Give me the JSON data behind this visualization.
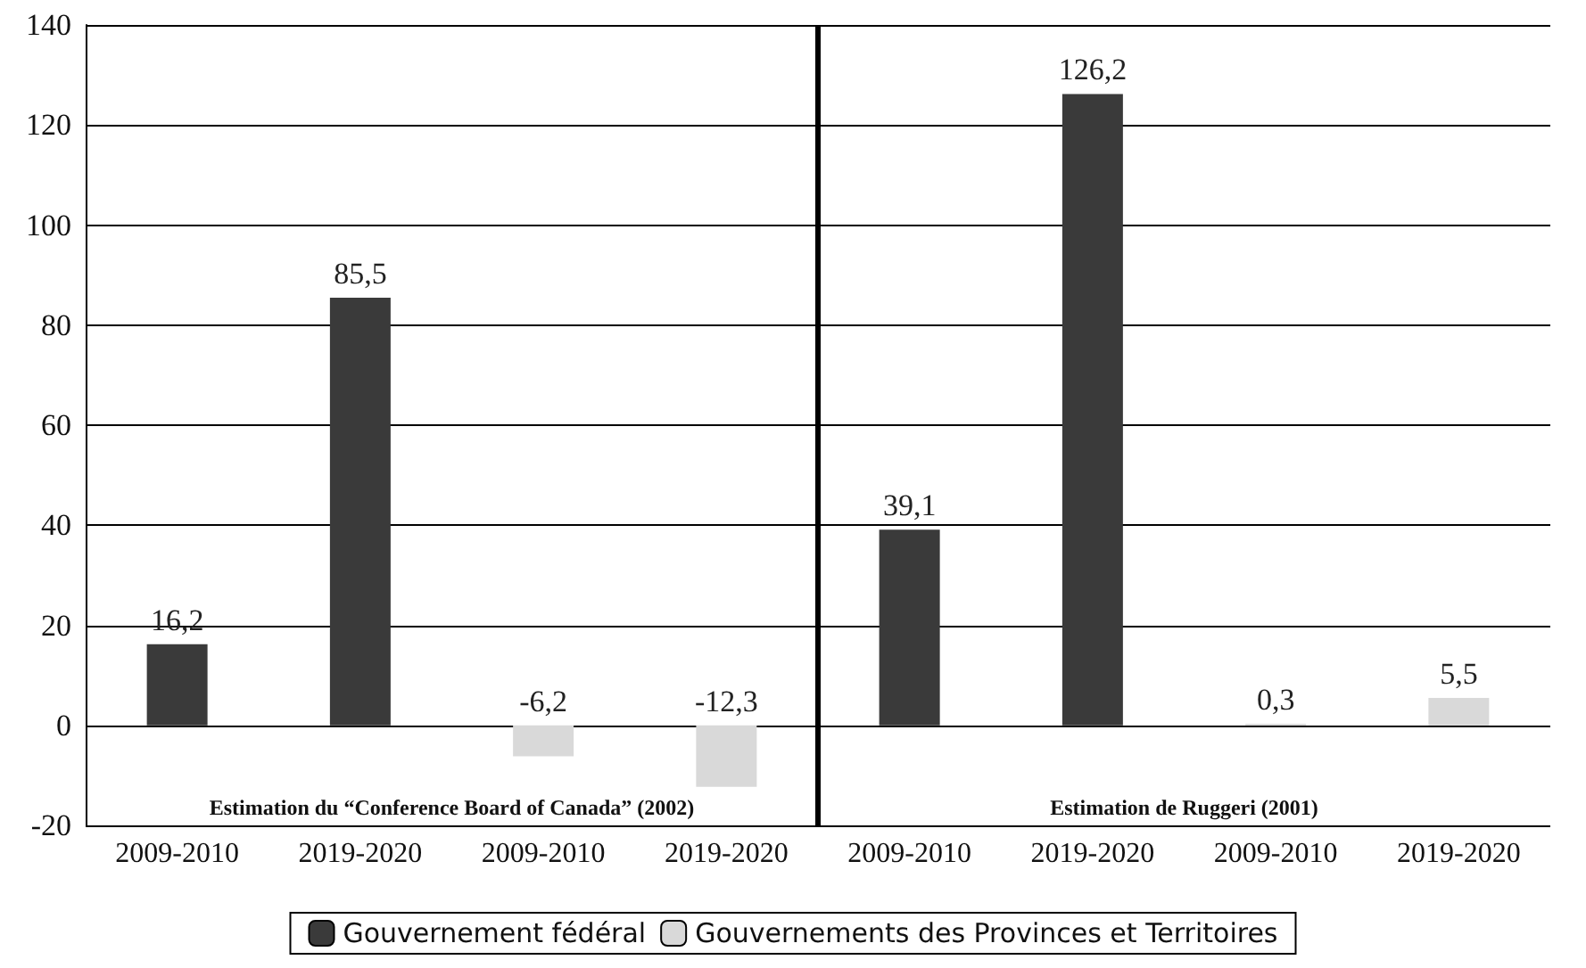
{
  "chart_data": {
    "type": "bar",
    "categories": [
      "2009-2010",
      "2019-2020",
      "2009-2010",
      "2019-2020",
      "2009-2010",
      "2019-2020",
      "2009-2010",
      "2019-2020"
    ],
    "series": [
      {
        "name": "Gouvernement fédéral",
        "color": "#3a3a3a",
        "values": [
          16.2,
          85.5,
          null,
          null,
          39.1,
          126.2,
          null,
          null
        ],
        "value_labels": [
          "16,2",
          "85,5",
          null,
          null,
          "39,1",
          "126,2",
          null,
          null
        ]
      },
      {
        "name": "Gouvernements des Provinces et Territoires",
        "color": "#d9d9d9",
        "values": [
          null,
          null,
          -6.2,
          -12.3,
          null,
          null,
          0.3,
          5.5
        ],
        "value_labels": [
          null,
          null,
          "-6,2",
          "-12,3",
          null,
          null,
          "0,3",
          "5,5"
        ]
      }
    ],
    "ylim": [
      -20,
      140
    ],
    "yticks": [
      -20,
      0,
      20,
      40,
      60,
      80,
      100,
      120,
      140
    ],
    "grid": "y",
    "legend": "bottom",
    "annotations": [
      "Estimation du “Conference Board of Canada” (2002)",
      "Estimation de Ruggeri (2001)"
    ]
  }
}
